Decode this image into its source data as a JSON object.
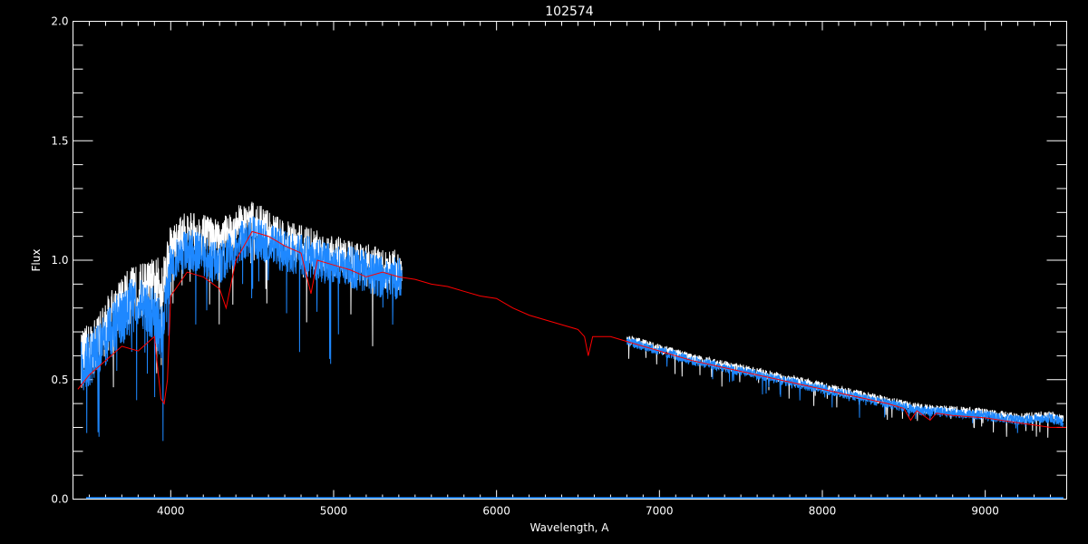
{
  "chart_data": {
    "type": "line",
    "title": "102574",
    "xlabel": "Wavelength, A",
    "ylabel": "Flux",
    "xlim": [
      3400,
      9500
    ],
    "ylim": [
      0,
      2.0
    ],
    "x_ticks": [
      4000,
      5000,
      6000,
      7000,
      8000,
      9000
    ],
    "x_tick_labels": [
      "4000",
      "5000",
      "6000",
      "7000",
      "8000",
      "9000"
    ],
    "y_ticks": [
      0,
      0.5,
      1.0,
      1.5,
      2.0
    ],
    "y_tick_labels": [
      "0.0",
      "0.5",
      "1.0",
      "1.5",
      "2.0"
    ],
    "grid": false,
    "background": "#000000",
    "series": [
      {
        "color": "#ffffff",
        "style": "solid",
        "segments": [
          [
            3450,
            5420
          ],
          [
            6800,
            9480
          ]
        ],
        "x": [
          3450,
          3550,
          3650,
          3750,
          3850,
          3950,
          4000,
          4100,
          4200,
          4300,
          4400,
          4500,
          4600,
          4700,
          4800,
          4900,
          5000,
          5100,
          5200,
          5300,
          5420,
          6800,
          7000,
          7200,
          7400,
          7600,
          7800,
          8000,
          8200,
          8400,
          8600,
          8800,
          9000,
          9200,
          9400,
          9480
        ],
        "y": [
          0.58,
          0.66,
          0.78,
          0.85,
          0.88,
          0.9,
          1.05,
          1.12,
          1.1,
          1.08,
          1.14,
          1.16,
          1.12,
          1.08,
          1.06,
          1.04,
          1.02,
          1.0,
          0.98,
          0.96,
          0.95,
          0.67,
          0.63,
          0.59,
          0.56,
          0.53,
          0.5,
          0.47,
          0.44,
          0.41,
          0.38,
          0.37,
          0.36,
          0.34,
          0.35,
          0.33
        ]
      },
      {
        "color": "#1e88ff",
        "style": "solid",
        "segments": [
          [
            3450,
            5420
          ],
          [
            6800,
            9480
          ]
        ],
        "x": [
          3450,
          3550,
          3650,
          3750,
          3850,
          3950,
          4000,
          4100,
          4200,
          4300,
          4400,
          4500,
          4600,
          4700,
          4800,
          4900,
          5000,
          5100,
          5200,
          5300,
          5420,
          6800,
          7000,
          7200,
          7400,
          7600,
          7800,
          8000,
          8200,
          8400,
          8600,
          8800,
          9000,
          9200,
          9400,
          9480
        ],
        "y": [
          0.55,
          0.62,
          0.72,
          0.8,
          0.82,
          0.7,
          0.98,
          1.05,
          1.02,
          0.98,
          1.06,
          1.1,
          1.06,
          1.04,
          1.02,
          1.0,
          0.98,
          0.97,
          0.95,
          0.93,
          0.92,
          0.66,
          0.62,
          0.58,
          0.55,
          0.52,
          0.49,
          0.46,
          0.43,
          0.4,
          0.37,
          0.36,
          0.35,
          0.33,
          0.34,
          0.32
        ]
      },
      {
        "color": "#ff0000",
        "style": "solid",
        "x": [
          3430,
          3500,
          3600,
          3700,
          3800,
          3900,
          3940,
          3960,
          3980,
          4000,
          4100,
          4200,
          4300,
          4340,
          4400,
          4500,
          4600,
          4700,
          4800,
          4861,
          4900,
          5000,
          5100,
          5200,
          5300,
          5400,
          5500,
          5600,
          5700,
          5800,
          5900,
          6000,
          6100,
          6200,
          6300,
          6400,
          6500,
          6540,
          6563,
          6590,
          6700,
          6800,
          7000,
          7200,
          7400,
          7600,
          7800,
          8000,
          8200,
          8400,
          8500,
          8542,
          8580,
          8662,
          8700,
          8800,
          9000,
          9200,
          9300,
          9400,
          9500
        ],
        "y": [
          0.46,
          0.52,
          0.58,
          0.64,
          0.62,
          0.68,
          0.42,
          0.4,
          0.5,
          0.85,
          0.95,
          0.93,
          0.88,
          0.8,
          1.0,
          1.12,
          1.1,
          1.06,
          1.03,
          0.86,
          1.0,
          0.98,
          0.96,
          0.93,
          0.95,
          0.93,
          0.92,
          0.9,
          0.89,
          0.87,
          0.85,
          0.84,
          0.8,
          0.77,
          0.75,
          0.73,
          0.71,
          0.68,
          0.6,
          0.68,
          0.68,
          0.66,
          0.62,
          0.58,
          0.55,
          0.52,
          0.49,
          0.46,
          0.43,
          0.4,
          0.38,
          0.33,
          0.37,
          0.33,
          0.36,
          0.35,
          0.34,
          0.32,
          0.31,
          0.3,
          0.3
        ]
      },
      {
        "color": "#1e88ff",
        "style": "solid",
        "x": [
          3480,
          9480
        ],
        "y": [
          0.005,
          0.005
        ]
      }
    ]
  }
}
